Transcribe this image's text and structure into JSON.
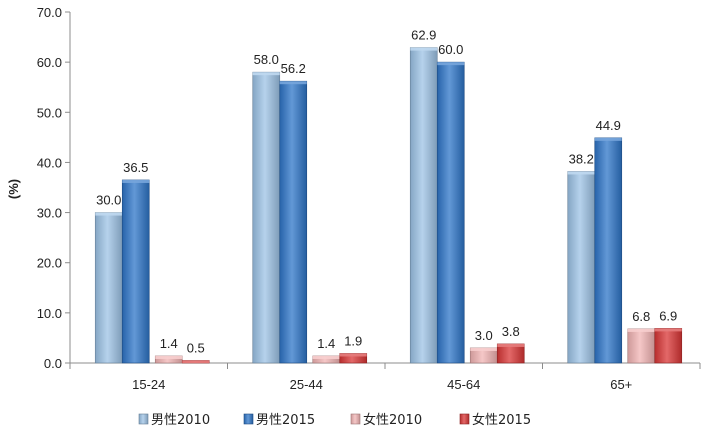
{
  "chart_data": {
    "type": "bar",
    "categories": [
      "15-24",
      "25-44",
      "45-64",
      "65+"
    ],
    "series": [
      {
        "name": "男性2010",
        "values": [
          30.0,
          58.0,
          62.9,
          38.2
        ],
        "color": "#9dc3e6"
      },
      {
        "name": "男性2015",
        "values": [
          36.5,
          56.2,
          60.0,
          44.9
        ],
        "color": "#2e75c8"
      },
      {
        "name": "女性2010",
        "values": [
          1.4,
          1.4,
          3.0,
          6.8
        ],
        "color": "#f2b4b4"
      },
      {
        "name": "女性2015",
        "values": [
          0.5,
          1.9,
          3.8,
          6.9
        ],
        "color": "#d93636"
      }
    ],
    "value_labels": [
      [
        "30.0",
        "58.0",
        "62.9",
        "38.2"
      ],
      [
        "36.5",
        "56.2",
        "60.0",
        "44.9"
      ],
      [
        "1.4",
        "1.4",
        "3.0",
        "6.8"
      ],
      [
        "0.5",
        "1.9",
        "3.8",
        "6.9"
      ]
    ],
    "title": "",
    "xlabel": "",
    "ylabel": "(%)",
    "ylim": [
      0,
      70
    ],
    "yticks": [
      "0.0",
      "10.0",
      "20.0",
      "30.0",
      "40.0",
      "50.0",
      "60.0",
      "70.0"
    ],
    "grid": false,
    "legend_position": "bottom"
  }
}
